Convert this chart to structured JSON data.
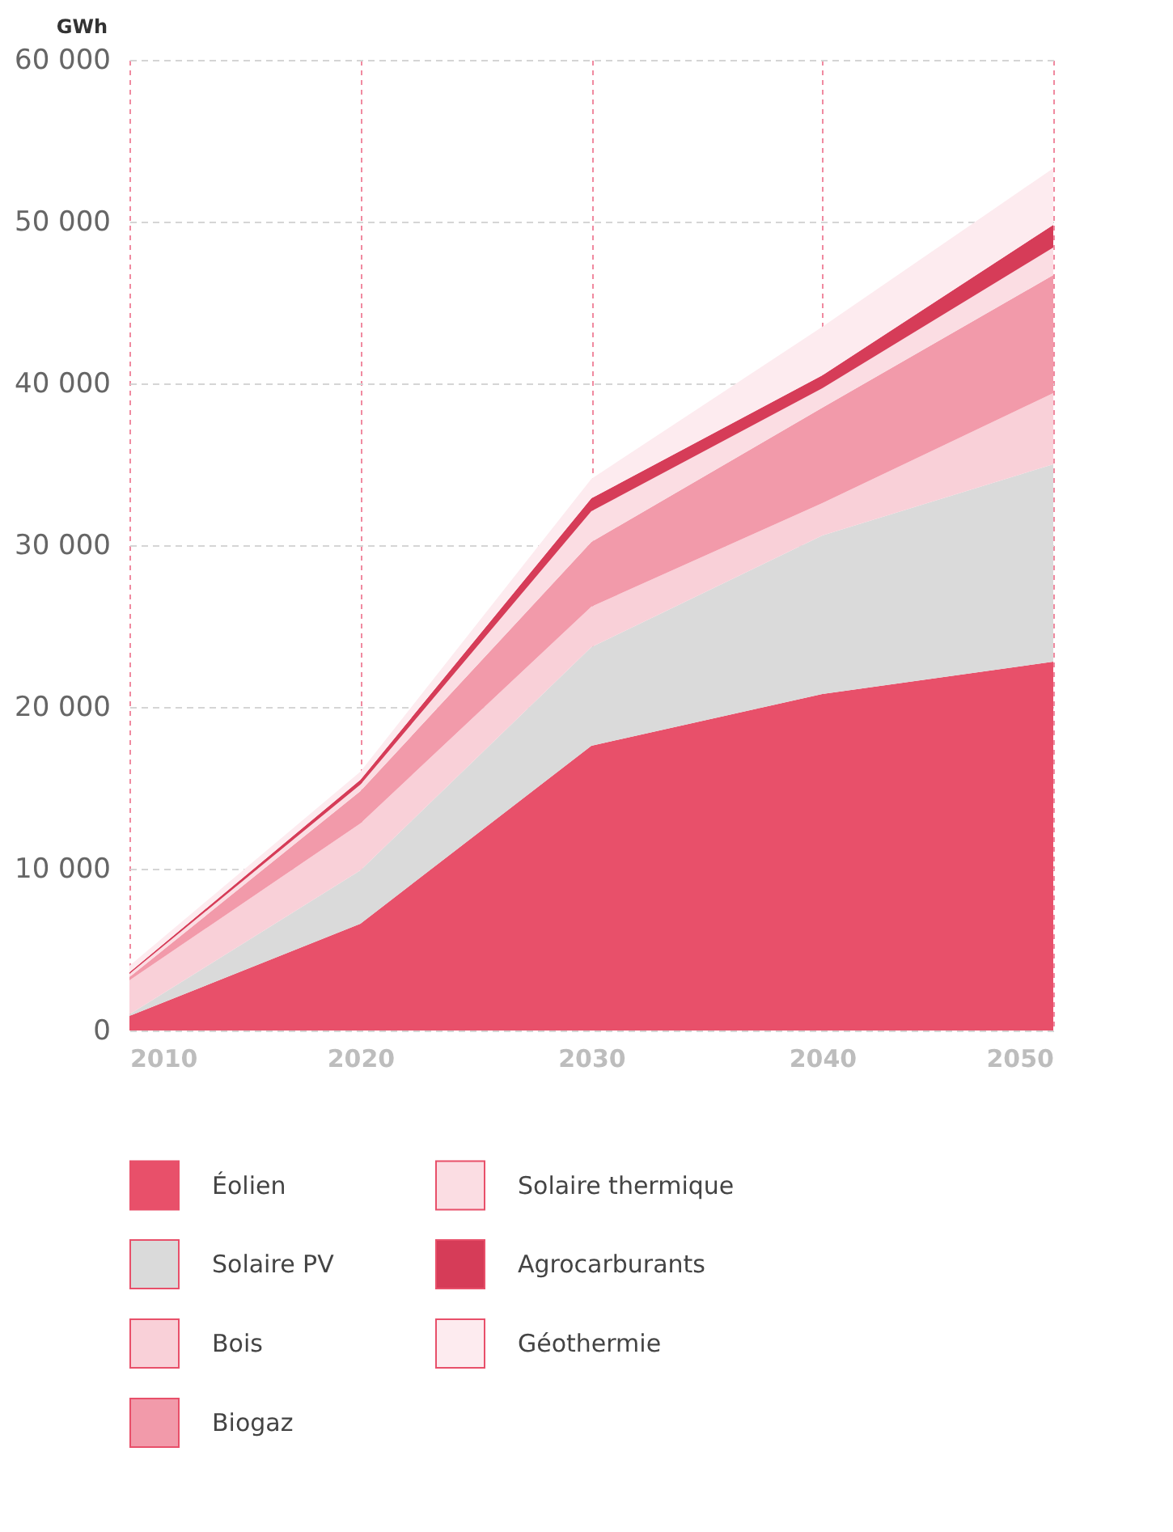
{
  "chart_data": {
    "type": "area",
    "stacked": true,
    "ylabel": "GWh",
    "x": [
      2010,
      2020,
      2030,
      2040,
      2050
    ],
    "xlim": [
      2010,
      2050
    ],
    "xticks": [
      2010,
      2020,
      2030,
      2040,
      2050
    ],
    "ylim": [
      0,
      60000
    ],
    "yticks": [
      {
        "value": 0,
        "label": "0"
      },
      {
        "value": 10000,
        "label": "10 000"
      },
      {
        "value": 20000,
        "label": "20 000"
      },
      {
        "value": 30000,
        "label": "30 000"
      },
      {
        "value": 40000,
        "label": "40 000"
      },
      {
        "value": 50000,
        "label": "50 000"
      },
      {
        "value": 60000,
        "label": "60 000"
      }
    ],
    "grid": true,
    "legend": "bottom",
    "series": [
      {
        "name": "Éolien",
        "color": "#e8506a",
        "values": [
          900,
          6600,
          17600,
          20800,
          22800
        ]
      },
      {
        "name": "Solaire PV",
        "color": "#dadada",
        "values": [
          100,
          3300,
          6100,
          9800,
          12200
        ]
      },
      {
        "name": "Bois",
        "color": "#f9d0d8",
        "values": [
          2100,
          2900,
          2500,
          2000,
          4400
        ]
      },
      {
        "name": "Biogaz",
        "color": "#f29aaa",
        "values": [
          200,
          2000,
          4000,
          5900,
          7300
        ]
      },
      {
        "name": "Solaire thermique",
        "color": "#fbdde3",
        "values": [
          200,
          400,
          1900,
          1200,
          1700
        ]
      },
      {
        "name": "Agrocarburants",
        "color": "#d63c58",
        "values": [
          100,
          300,
          800,
          800,
          1400
        ]
      },
      {
        "name": "Géothermie",
        "color": "#fdebef",
        "values": [
          400,
          500,
          1200,
          3000,
          3500
        ]
      }
    ]
  }
}
